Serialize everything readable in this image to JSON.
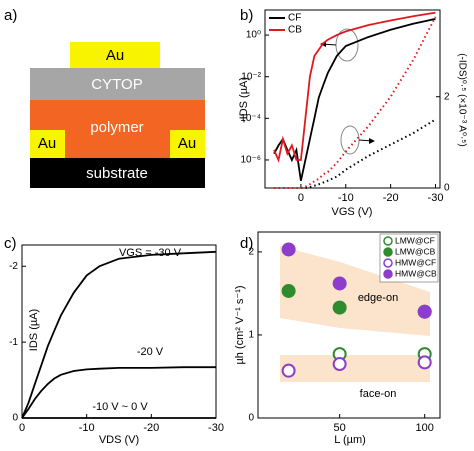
{
  "diagram": {
    "panel_label": "a)",
    "layers": [
      "Au",
      "CYTOP",
      "polymer",
      "Au",
      "Au",
      "substrate"
    ]
  },
  "chart_data": [
    {
      "type": "line",
      "panel_label": "b)",
      "x_label": "VGS (V)",
      "y_label": "-IDS (µA)",
      "y2_label": "(-IDS)⁰·⁵ (×10⁻³ A⁰·⁵)",
      "x": [
        6,
        5,
        4,
        3,
        2,
        1,
        0,
        -1,
        -2,
        -3,
        -4,
        -5,
        -6,
        -8,
        -10,
        -15,
        -20,
        -25,
        -30
      ],
      "xlim": [
        8,
        -31
      ],
      "xticks": [
        0,
        -10,
        -20,
        -30
      ],
      "log_y": true,
      "ylim": [
        4.5e-08,
        16
      ],
      "yticks": [
        {
          "value": 1e-06,
          "label": "10⁻⁶"
        },
        {
          "value": 0.0001,
          "label": "10⁻⁴"
        },
        {
          "value": 0.01,
          "label": "10⁻²"
        },
        {
          "value": 1,
          "label": "10⁰"
        }
      ],
      "y2lim": [
        0,
        3.9
      ],
      "y2ticks": [
        0,
        2
      ],
      "legend": "upper left",
      "series": [
        {
          "name": "CF",
          "color": "#000000",
          "line_style": "solid",
          "values": [
            2e-06,
            5e-06,
            1e-05,
            3e-06,
            1e-06,
            3e-06,
            1e-07,
            1e-06,
            1e-05,
            0.0001,
            0.001,
            0.004,
            0.015,
            0.1,
            0.3,
            0.8,
            1.8,
            3.5,
            6
          ]
        },
        {
          "name": "CB",
          "color": "#e0191e",
          "line_style": "solid",
          "values": [
            3e-06,
            1e-06,
            1e-05,
            2e-06,
            5e-06,
            1e-06,
            1e-06,
            0.0001,
            0.01,
            0.1,
            0.2,
            0.4,
            0.6,
            1,
            1.5,
            3,
            5,
            8,
            12
          ]
        },
        {
          "name": "CF",
          "color": "#000000",
          "line_style": "dotted",
          "axis": "y2",
          "values": [
            0,
            0,
            0,
            0,
            0,
            0,
            0,
            0,
            0.02,
            0.05,
            0.08,
            0.12,
            0.16,
            0.25,
            0.4,
            0.7,
            0.95,
            1.2,
            1.5
          ]
        },
        {
          "name": "CB",
          "color": "#e0191e",
          "line_style": "dotted",
          "axis": "y2",
          "values": [
            0,
            0,
            0,
            0,
            0,
            0,
            0,
            0.03,
            0.08,
            0.15,
            0.2,
            0.3,
            0.35,
            0.55,
            0.8,
            1.35,
            2.0,
            2.8,
            3.75
          ]
        }
      ]
    },
    {
      "type": "line",
      "panel_label": "c)",
      "x_label": "VDS (V)",
      "y_label": "IDS (µA)",
      "x": [
        0,
        -1,
        -2,
        -3,
        -4,
        -5,
        -6,
        -8,
        -10,
        -12,
        -15,
        -20,
        -25,
        -30
      ],
      "xlim": [
        0,
        -30
      ],
      "xticks": [
        0,
        -10,
        -20,
        -30
      ],
      "ylim": [
        0,
        -2.28
      ],
      "yticks": [
        0,
        -1,
        -2
      ],
      "series": [
        {
          "name": "VGS = -30 V",
          "color": "#000000",
          "line_style": "solid",
          "values": [
            0,
            -0.2,
            -0.45,
            -0.7,
            -0.95,
            -1.15,
            -1.35,
            -1.65,
            -1.88,
            -2.0,
            -2.1,
            -2.15,
            -2.17,
            -2.19
          ]
        },
        {
          "name": "-20 V",
          "color": "#000000",
          "line_style": "solid",
          "values": [
            0,
            -0.12,
            -0.25,
            -0.36,
            -0.45,
            -0.52,
            -0.57,
            -0.62,
            -0.64,
            -0.65,
            -0.66,
            -0.66,
            -0.67,
            -0.67
          ]
        },
        {
          "name": "-10 V ~ 0 V",
          "color": "#000000",
          "line_style": "solid",
          "values": [
            0,
            0,
            0,
            0,
            0,
            0,
            0,
            0,
            0,
            0,
            0,
            0,
            0,
            0
          ]
        }
      ]
    },
    {
      "type": "scatter",
      "panel_label": "d)",
      "x_label": "L (µm)",
      "y_label": "µh (cm² V⁻¹ s⁻¹)",
      "xlim": [
        2,
        109
      ],
      "xticks": [
        50,
        100
      ],
      "ylim": [
        0,
        2.24
      ],
      "yticks": [
        0,
        1,
        2
      ],
      "legend": "upper right",
      "annotations": [
        "edge-on",
        "face-on"
      ],
      "series": [
        {
          "name": "LMW@CF",
          "color": "#2e8b2e",
          "filled": false,
          "x": [
            50,
            100
          ],
          "values": [
            0.77,
            0.77
          ]
        },
        {
          "name": "LMW@CB",
          "color": "#2e8b2e",
          "filled": true,
          "x": [
            20,
            50,
            100
          ],
          "values": [
            1.53,
            1.33,
            1.28
          ]
        },
        {
          "name": "HMW@CF",
          "color": "#8e3ccc",
          "filled": false,
          "x": [
            20,
            50,
            100
          ],
          "values": [
            0.57,
            0.65,
            0.67
          ]
        },
        {
          "name": "HMW@CB",
          "color": "#8e3ccc",
          "filled": true,
          "x": [
            20,
            50,
            100
          ],
          "values": [
            2.03,
            1.62,
            1.28
          ]
        }
      ]
    }
  ]
}
